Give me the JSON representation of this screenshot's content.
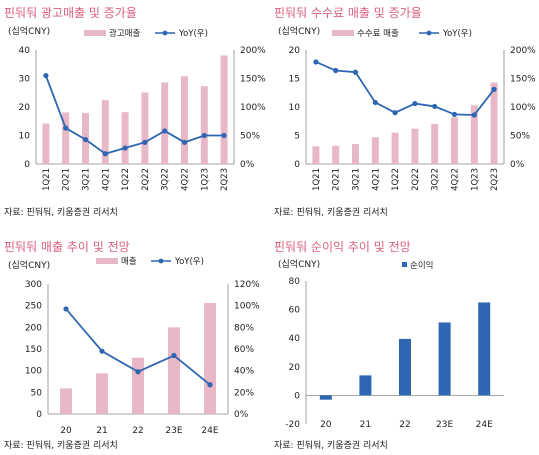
{
  "panels": [
    {
      "title": "핀둬둬 광고매출 및 증가율",
      "source": "자료: 핀둬둬, 키움증권 리서치",
      "chart_data": {
        "type": "bar",
        "unit_label": "(십억CNY)",
        "categories": [
          "1Q21",
          "2Q21",
          "3Q21",
          "4Q21",
          "1Q22",
          "2Q22",
          "3Q22",
          "4Q22",
          "1Q23",
          "2Q23"
        ],
        "series": [
          {
            "name": "광고매출",
            "kind": "bar",
            "axis": "left",
            "values": [
              14.2,
              18.1,
              17.9,
              22.4,
              18.2,
              25.1,
              28.6,
              30.8,
              27.3,
              38.1
            ]
          },
          {
            "name": "YoY(우)",
            "kind": "line",
            "axis": "right",
            "values": [
              155,
              63,
              43,
              18,
              28,
              38,
              58,
              38,
              50,
              50
            ]
          }
        ],
        "ylim": [
          0,
          40
        ],
        "yticks": [
          0,
          10,
          20,
          30,
          40
        ],
        "y2lim": [
          0,
          200
        ],
        "y2ticks": [
          "0%",
          "50%",
          "100%",
          "150%",
          "200%"
        ],
        "legend": "top"
      }
    },
    {
      "title": "핀둬둬 수수료 매출 및 증가율",
      "source": "자료: 핀둬둬, 키움증권 리서치",
      "chart_data": {
        "type": "bar",
        "unit_label": "(십억CNY)",
        "categories": [
          "1Q21",
          "2Q21",
          "3Q21",
          "4Q21",
          "1Q22",
          "2Q22",
          "3Q22",
          "4Q22",
          "1Q23",
          "2Q23"
        ],
        "series": [
          {
            "name": "수수료 매출",
            "kind": "bar",
            "axis": "left",
            "values": [
              3.1,
              3.2,
              3.5,
              4.7,
              5.5,
              6.2,
              7.0,
              8.2,
              10.3,
              14.3
            ]
          },
          {
            "name": "YoY(우)",
            "kind": "line",
            "axis": "right",
            "values": [
              179,
              164,
              161,
              108,
              90,
              106,
              101,
              87,
              86,
              131
            ]
          }
        ],
        "ylim": [
          0,
          20
        ],
        "yticks": [
          0,
          5,
          10,
          15,
          20
        ],
        "y2lim": [
          0,
          200
        ],
        "y2ticks": [
          "0%",
          "50%",
          "100%",
          "150%",
          "200%"
        ],
        "legend": "top"
      }
    },
    {
      "title": "핀둬둬 매출 추이 및 전망",
      "source": "자료: 핀둬둬, 키움증권 리서치",
      "chart_data": {
        "type": "bar",
        "unit_label": "(십억CNY)",
        "categories": [
          "20",
          "21",
          "22",
          "23E",
          "24E"
        ],
        "series": [
          {
            "name": "매출",
            "kind": "bar",
            "axis": "left",
            "values": [
              59,
              94,
              130,
              200,
              256
            ]
          },
          {
            "name": "YoY(우)",
            "kind": "line",
            "axis": "right",
            "values": [
              97,
              58,
              39,
              54,
              27
            ]
          }
        ],
        "ylim": [
          0,
          300
        ],
        "yticks": [
          0,
          50,
          100,
          150,
          200,
          250,
          300
        ],
        "y2lim": [
          0,
          120
        ],
        "y2ticks": [
          "0%",
          "20%",
          "40%",
          "60%",
          "80%",
          "100%",
          "120%"
        ],
        "legend": "top"
      }
    },
    {
      "title": "핀둬둬 순이익 추이 및 전망",
      "source": "자료: 핀둬둬, 키움증권 리서치",
      "chart_data": {
        "type": "bar",
        "unit_label": "(십억CNY)",
        "categories": [
          "20",
          "21",
          "22",
          "23E",
          "24E"
        ],
        "series": [
          {
            "name": "순이익",
            "kind": "bar",
            "axis": "left",
            "values": [
              -3,
              14,
              39.5,
              51,
              65
            ]
          }
        ],
        "ylim": [
          -20,
          80
        ],
        "yticks": [
          -20,
          0,
          20,
          40,
          60,
          80
        ],
        "legend": "top"
      }
    }
  ],
  "colors": {
    "title": "#d9607e",
    "bar_pink": "#e8b8c6",
    "line_blue": "#2f66b3",
    "bar_blue": "#2f66b3",
    "axis": "#888888",
    "text": "#222222"
  }
}
